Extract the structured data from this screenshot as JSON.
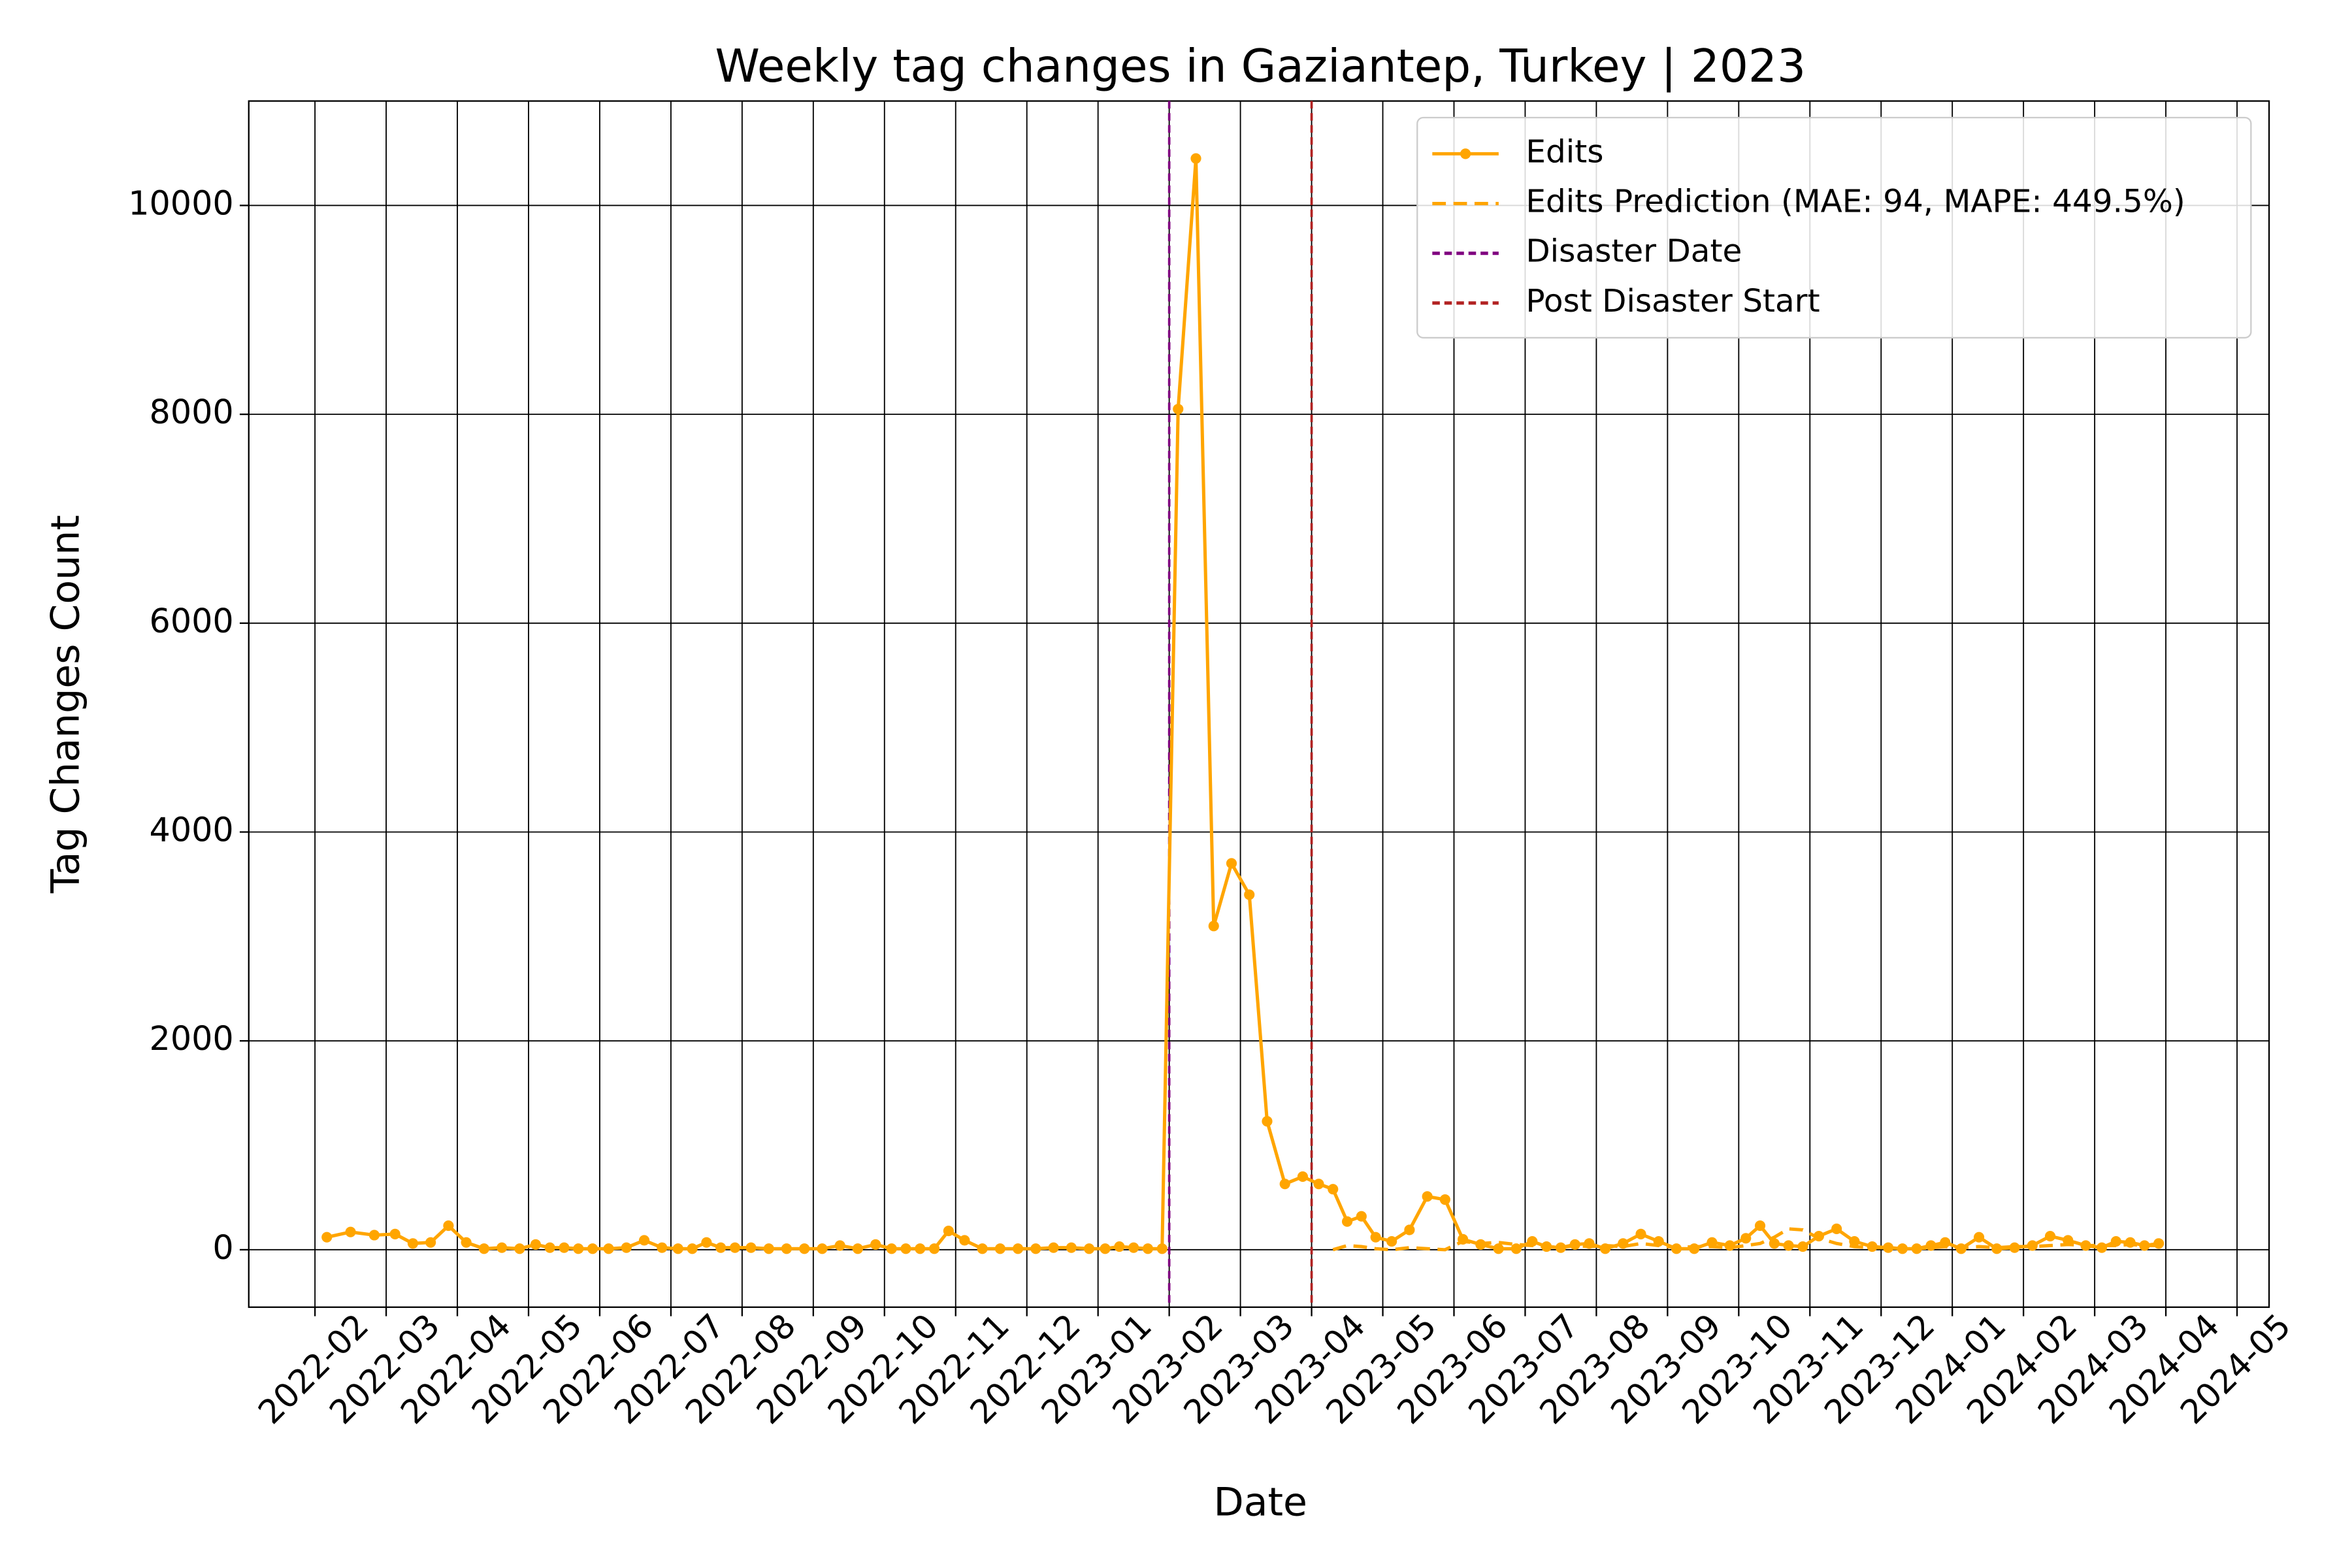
{
  "chart_data": {
    "type": "line",
    "title": "Weekly tag changes in Gaziantep, Turkey | 2023",
    "xlabel": "Date",
    "ylabel": "Tag Changes Count",
    "x": [
      "2022-02",
      "2022-02",
      "2022-02",
      "2022-03",
      "2022-03",
      "2022-03",
      "2022-03",
      "2022-04",
      "2022-04",
      "2022-04",
      "2022-04",
      "2022-05",
      "2022-05",
      "2022-05",
      "2022-05",
      "2022-05",
      "2022-06",
      "2022-06",
      "2022-06",
      "2022-06",
      "2022-07",
      "2022-07",
      "2022-07",
      "2022-07",
      "2022-07",
      "2022-08",
      "2022-08",
      "2022-08",
      "2022-08",
      "2022-09",
      "2022-09",
      "2022-09",
      "2022-09",
      "2022-10",
      "2022-10",
      "2022-10",
      "2022-10",
      "2022-10",
      "2022-11",
      "2022-11",
      "2022-11",
      "2022-11",
      "2022-12",
      "2022-12",
      "2022-12",
      "2022-12",
      "2023-01",
      "2023-01",
      "2023-01",
      "2023-01",
      "2023-01",
      "2023-02",
      "2023-02",
      "2023-02",
      "2023-02",
      "2023-03",
      "2023-03",
      "2023-03",
      "2023-03",
      "2023-04",
      "2023-04",
      "2023-04",
      "2023-04",
      "2023-04",
      "2023-05",
      "2023-05",
      "2023-05",
      "2023-05",
      "2023-06",
      "2023-06",
      "2023-06",
      "2023-06",
      "2023-07",
      "2023-07",
      "2023-07",
      "2023-07",
      "2023-07",
      "2023-08",
      "2023-08",
      "2023-08",
      "2023-08",
      "2023-09",
      "2023-09",
      "2023-09",
      "2023-09",
      "2023-10",
      "2023-10",
      "2023-10",
      "2023-10",
      "2023-10",
      "2023-11",
      "2023-11",
      "2023-11",
      "2023-11",
      "2023-12",
      "2023-12",
      "2023-12",
      "2023-12",
      "2023-12",
      "2024-01",
      "2024-01",
      "2024-01",
      "2024-01",
      "2024-02",
      "2024-02",
      "2024-02",
      "2024-02",
      "2024-03",
      "2024-03",
      "2024-03",
      "2024-03",
      "2024-03"
    ],
    "series": [
      {
        "name": "Edits",
        "color": "#ffa500",
        "marker": true,
        "dashed": false,
        "values": [
          120,
          170,
          140,
          150,
          60,
          70,
          230,
          70,
          10,
          20,
          10,
          50,
          20,
          20,
          10,
          10,
          10,
          20,
          90,
          20,
          10,
          10,
          70,
          20,
          20,
          20,
          10,
          10,
          10,
          10,
          40,
          10,
          50,
          10,
          10,
          10,
          10,
          180,
          90,
          10,
          10,
          10,
          10,
          20,
          20,
          10,
          10,
          30,
          20,
          10,
          10,
          8050,
          10450,
          3100,
          3700,
          3400,
          1230,
          630,
          700,
          630,
          580,
          270,
          320,
          120,
          80,
          190,
          510,
          480,
          100,
          50,
          10,
          10,
          80,
          30,
          20,
          50,
          60,
          10,
          60,
          150,
          80,
          10,
          10,
          70,
          40,
          110,
          230,
          60,
          40,
          30,
          130,
          200,
          80,
          30,
          20,
          10,
          10,
          40,
          70,
          10,
          120,
          10,
          20,
          40,
          130,
          90,
          40,
          20,
          80,
          70,
          40,
          60
        ]
      },
      {
        "name": "Edits Prediction (MAE: 94, MAPE: 449.5%)",
        "color": "#ffa500",
        "marker": false,
        "dashed": true,
        "values": [
          null,
          null,
          null,
          null,
          null,
          null,
          null,
          null,
          null,
          null,
          null,
          null,
          null,
          null,
          null,
          null,
          null,
          null,
          null,
          null,
          null,
          null,
          null,
          null,
          null,
          null,
          null,
          null,
          null,
          null,
          null,
          null,
          null,
          null,
          null,
          null,
          null,
          null,
          null,
          null,
          null,
          null,
          null,
          null,
          null,
          null,
          null,
          null,
          null,
          null,
          null,
          null,
          null,
          null,
          null,
          null,
          null,
          null,
          null,
          null,
          0,
          40,
          30,
          10,
          0,
          20,
          10,
          0,
          80,
          60,
          70,
          50,
          40,
          30,
          20,
          40,
          30,
          40,
          30,
          60,
          40,
          20,
          30,
          30,
          20,
          40,
          60,
          120,
          200,
          190,
          110,
          60,
          30,
          20,
          20,
          10,
          10,
          20,
          30,
          20,
          30,
          20,
          30,
          30,
          40,
          50,
          40,
          40,
          40,
          50,
          40,
          40
        ]
      }
    ],
    "vlines": [
      {
        "name": "Disaster Date",
        "x": "2023-02",
        "color": "#800080"
      },
      {
        "name": "Post Disaster Start",
        "x": "2023-04",
        "color": "#b22222"
      }
    ],
    "xlim": [
      "2022-01",
      "2024-05"
    ],
    "xticks": [
      "2022-02",
      "2022-03",
      "2022-04",
      "2022-05",
      "2022-06",
      "2022-07",
      "2022-08",
      "2022-09",
      "2022-10",
      "2022-11",
      "2022-12",
      "2023-01",
      "2023-02",
      "2023-03",
      "2023-04",
      "2023-05",
      "2023-06",
      "2023-07",
      "2023-08",
      "2023-09",
      "2023-10",
      "2023-11",
      "2023-12",
      "2024-01",
      "2024-02",
      "2024-03",
      "2024-04",
      "2024-05"
    ],
    "ylim": [
      -550,
      11000
    ],
    "yticks": [
      0,
      2000,
      4000,
      6000,
      8000,
      10000
    ],
    "grid": true,
    "legend": "upper right"
  }
}
